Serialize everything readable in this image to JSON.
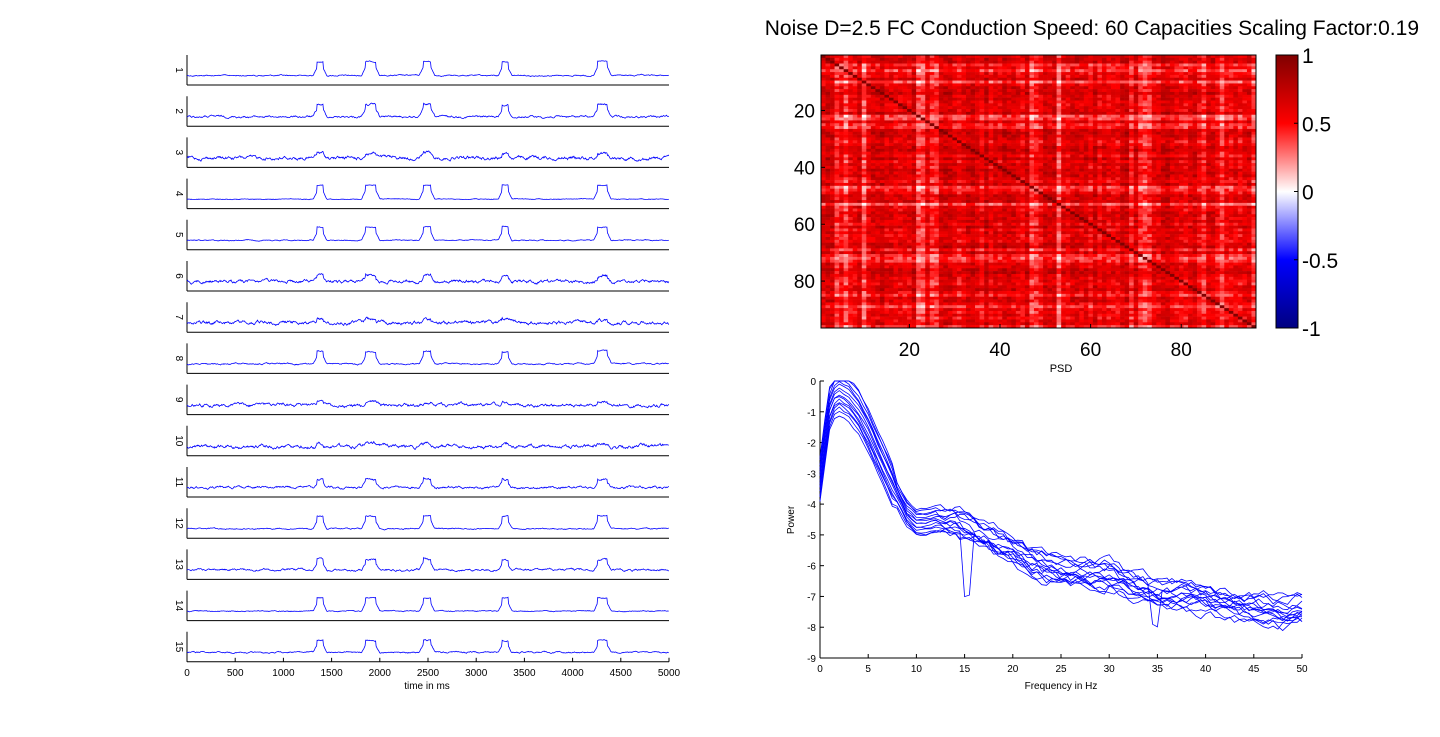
{
  "title": "Noise D=2.5 FC Conduction Speed: 60  Capacities Scaling Factor:0.19",
  "colors": {
    "trace": "#0000ff",
    "axis": "#000000",
    "background": "#ffffff"
  },
  "chart_data": [
    {
      "type": "line",
      "name": "time-series",
      "xlabel": "time in ms",
      "ylabel": "",
      "xlim": [
        0,
        5000
      ],
      "xticks": [
        0,
        500,
        1000,
        1500,
        2000,
        2500,
        3000,
        3500,
        4000,
        4500,
        5000
      ],
      "tick_labels": [
        "0",
        "500",
        "1000",
        "1500",
        "2000",
        "2500",
        "3000",
        "3500",
        "4000",
        "4500",
        "5000"
      ],
      "grid": false,
      "series": [
        {
          "label": "1",
          "burst_strength": 1.0,
          "noise": 0.1
        },
        {
          "label": "2",
          "burst_strength": 0.85,
          "noise": 0.18
        },
        {
          "label": "3",
          "burst_strength": 0.35,
          "noise": 0.3
        },
        {
          "label": "4",
          "burst_strength": 1.0,
          "noise": 0.06
        },
        {
          "label": "5",
          "burst_strength": 0.95,
          "noise": 0.08
        },
        {
          "label": "6",
          "burst_strength": 0.45,
          "noise": 0.28
        },
        {
          "label": "7",
          "burst_strength": 0.25,
          "noise": 0.3
        },
        {
          "label": "8",
          "burst_strength": 0.9,
          "noise": 0.12
        },
        {
          "label": "9",
          "burst_strength": 0.2,
          "noise": 0.28
        },
        {
          "label": "10",
          "burst_strength": 0.2,
          "noise": 0.3
        },
        {
          "label": "11",
          "burst_strength": 0.6,
          "noise": 0.2
        },
        {
          "label": "12",
          "burst_strength": 0.9,
          "noise": 0.1
        },
        {
          "label": "13",
          "burst_strength": 0.75,
          "noise": 0.18
        },
        {
          "label": "14",
          "burst_strength": 0.95,
          "noise": 0.08
        },
        {
          "label": "15",
          "burst_strength": 0.85,
          "noise": 0.12
        }
      ],
      "bursts_ms": [
        [
          1350,
          1410
        ],
        [
          1850,
          1960
        ],
        [
          2450,
          2530
        ],
        [
          3270,
          3330
        ],
        [
          4260,
          4360
        ]
      ]
    },
    {
      "type": "heatmap",
      "name": "functional-connectivity",
      "size": 96,
      "xticks": [
        20,
        40,
        60,
        80
      ],
      "yticks": [
        20,
        40,
        60,
        80
      ],
      "colorbar": {
        "min": -1,
        "max": 1,
        "ticks": [
          "1",
          "0.5",
          "0",
          "-0.5",
          "-1"
        ]
      },
      "colormap": [
        "#000080",
        "#0000ff",
        "#ffffff",
        "#ff0000",
        "#800000"
      ],
      "weak_nodes": [
        3,
        5,
        9,
        21,
        22,
        24,
        25,
        46,
        47,
        52,
        68,
        70,
        71,
        72,
        84,
        88,
        95
      ]
    },
    {
      "type": "line",
      "name": "psd",
      "title": "PSD",
      "xlabel": "Frequency in Hz",
      "ylabel": "Power",
      "xlim": [
        0,
        50
      ],
      "ylim": [
        -9,
        0
      ],
      "xticks": [
        0,
        5,
        10,
        15,
        20,
        25,
        30,
        35,
        40,
        45,
        50
      ],
      "yticks": [
        0,
        -1,
        -2,
        -3,
        -4,
        -5,
        -6,
        -7,
        -8,
        -9
      ],
      "grid": false,
      "base_curve": {
        "x": [
          0,
          0.5,
          1,
          1.5,
          2,
          3,
          4,
          5,
          6,
          7,
          8,
          9,
          10,
          11,
          12,
          14,
          16,
          18,
          20,
          22,
          25,
          28,
          30,
          32,
          35,
          38,
          40,
          42,
          45,
          48,
          50
        ],
        "y": [
          -3.2,
          -2.0,
          -0.9,
          -0.5,
          -0.4,
          -0.6,
          -1.0,
          -1.6,
          -2.3,
          -3.0,
          -3.7,
          -4.3,
          -4.6,
          -4.6,
          -4.5,
          -4.6,
          -4.9,
          -5.2,
          -5.5,
          -5.9,
          -6.2,
          -6.3,
          -6.3,
          -6.6,
          -6.9,
          -7.0,
          -7.1,
          -7.2,
          -7.4,
          -7.5,
          -7.4
        ]
      },
      "series_offsets": [
        0.2,
        -0.2,
        0.4,
        -0.4,
        0.0,
        0.6,
        -0.6,
        0.3,
        -0.3,
        0.5,
        -0.5,
        0.1,
        -0.1,
        0.7,
        -0.7
      ]
    }
  ]
}
